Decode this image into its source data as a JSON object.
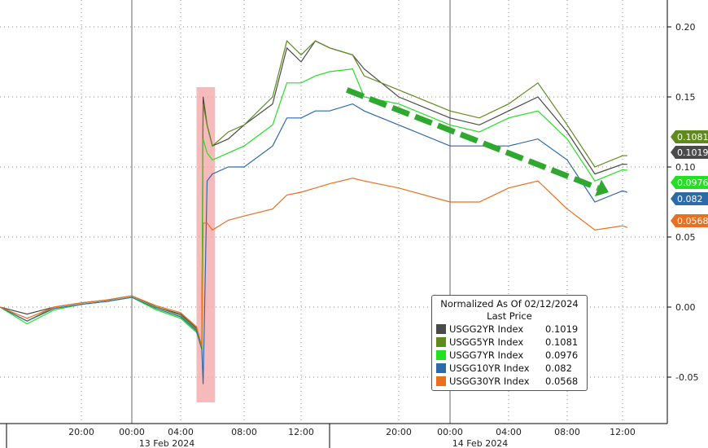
{
  "chart_data": {
    "type": "line",
    "title": "",
    "xlabel": "",
    "ylabel": "",
    "ylim": [
      -0.08,
      0.22
    ],
    "y_axis_position": "right",
    "y_ticks": [
      "0.20",
      "0.15",
      "0.10",
      "0.05",
      "0.00",
      "-0.05"
    ],
    "x_tick_labels": [
      {
        "time": "2024-02-12 20:00",
        "label": "20:00"
      },
      {
        "time": "2024-02-13 00:00",
        "label": "00:00"
      },
      {
        "time": "2024-02-13 04:00",
        "label": "04:00"
      },
      {
        "time": "2024-02-13 08:00",
        "label": "08:00"
      },
      {
        "time": "2024-02-13 12:00",
        "label": "12:00"
      },
      {
        "time": "2024-02-13 20:00",
        "label": "20:00"
      },
      {
        "time": "2024-02-14 00:00",
        "label": "00:00"
      },
      {
        "time": "2024-02-14 04:00",
        "label": "04:00"
      },
      {
        "time": "2024-02-14 08:00",
        "label": "08:00"
      },
      {
        "time": "2024-02-14 12:00",
        "label": "12:00"
      }
    ],
    "date_labels": [
      "13 Feb 2024",
      "14 Feb 2024"
    ],
    "grid": true,
    "legend": {
      "placement": "bottom-right",
      "title": "Normalized As Of 02/12/2024",
      "subtitle": "Last Price"
    },
    "x": [
      "2024-02-12 14:00",
      "2024-02-12 16:00",
      "2024-02-12 18:00",
      "2024-02-12 20:00",
      "2024-02-12 22:00",
      "2024-02-13 00:00",
      "2024-02-13 02:00",
      "2024-02-13 04:00",
      "2024-02-13 05:00",
      "2024-02-13 05:20",
      "2024-02-13 05:25",
      "2024-02-13 05:40",
      "2024-02-13 06:00",
      "2024-02-13 07:00",
      "2024-02-13 08:00",
      "2024-02-13 10:00",
      "2024-02-13 11:00",
      "2024-02-13 12:00",
      "2024-02-13 13:00",
      "2024-02-13 14:00",
      "2024-02-13 16:00",
      "2024-02-13 17:00",
      "2024-02-13 20:00",
      "2024-02-14 00:00",
      "2024-02-14 02:00",
      "2024-02-14 04:00",
      "2024-02-14 06:00",
      "2024-02-14 08:00",
      "2024-02-14 10:00",
      "2024-02-14 12:00",
      "2024-02-14 12:20"
    ],
    "series": [
      {
        "name": "USGG2YR Index",
        "last": "0.1019",
        "color": "#4a4a4a",
        "values": [
          0,
          -0.005,
          0,
          0.003,
          0.005,
          0.008,
          0,
          -0.005,
          -0.015,
          -0.03,
          0.15,
          0.13,
          0.115,
          0.12,
          0.13,
          0.145,
          0.185,
          0.175,
          0.19,
          0.185,
          0.18,
          0.17,
          0.15,
          0.135,
          0.13,
          0.14,
          0.15,
          0.125,
          0.095,
          0.102,
          0.1019
        ]
      },
      {
        "name": "USGG5YR Index",
        "last": "0.1081",
        "color": "#5e8a1e",
        "values": [
          0,
          -0.01,
          0,
          0.003,
          0.005,
          0.008,
          0,
          -0.006,
          -0.016,
          -0.03,
          0.145,
          0.13,
          0.115,
          0.125,
          0.13,
          0.15,
          0.19,
          0.18,
          0.19,
          0.185,
          0.18,
          0.165,
          0.155,
          0.14,
          0.135,
          0.145,
          0.16,
          0.13,
          0.1,
          0.108,
          0.1081
        ]
      },
      {
        "name": "USGG7YR Index",
        "last": "0.0976",
        "color": "#22e022",
        "values": [
          0,
          -0.012,
          -0.002,
          0.002,
          0.004,
          0.007,
          -0.002,
          -0.008,
          -0.018,
          -0.03,
          0.12,
          0.11,
          0.105,
          0.11,
          0.115,
          0.13,
          0.16,
          0.16,
          0.165,
          0.168,
          0.17,
          0.15,
          0.145,
          0.13,
          0.125,
          0.135,
          0.14,
          0.12,
          0.09,
          0.098,
          0.0976
        ]
      },
      {
        "name": "USGG10YR Index",
        "last": "0.082",
        "color": "#2f6aa8",
        "values": [
          0,
          -0.01,
          -0.001,
          0.002,
          0.004,
          0.007,
          -0.001,
          -0.007,
          -0.017,
          -0.03,
          -0.055,
          0.09,
          0.095,
          0.1,
          0.1,
          0.115,
          0.135,
          0.135,
          0.14,
          0.14,
          0.145,
          0.14,
          0.13,
          0.115,
          0.115,
          0.115,
          0.12,
          0.105,
          0.075,
          0.083,
          0.082
        ]
      },
      {
        "name": "USGG30YR Index",
        "last": "0.0568",
        "color": "#e8701e",
        "values": [
          0,
          -0.008,
          0,
          0.003,
          0.005,
          0.008,
          0.001,
          -0.004,
          -0.014,
          -0.028,
          0.06,
          0.06,
          0.055,
          0.062,
          0.065,
          0.07,
          0.08,
          0.082,
          0.085,
          0.088,
          0.092,
          0.09,
          0.085,
          0.075,
          0.075,
          0.085,
          0.09,
          0.07,
          0.055,
          0.058,
          0.0568
        ]
      }
    ],
    "annotations": [
      {
        "type": "highlight-band",
        "color": "#f4a3a3",
        "from": "2024-02-13 05:00",
        "to": "2024-02-13 06:10",
        "y_range": [
          -0.068,
          0.157
        ]
      },
      {
        "type": "dashed-arrow",
        "color": "#2ea82e",
        "from": {
          "time": "2024-02-13 15:30",
          "value": 0.155
        },
        "to": {
          "time": "2024-02-14 11:00",
          "value": 0.082
        }
      }
    ]
  }
}
